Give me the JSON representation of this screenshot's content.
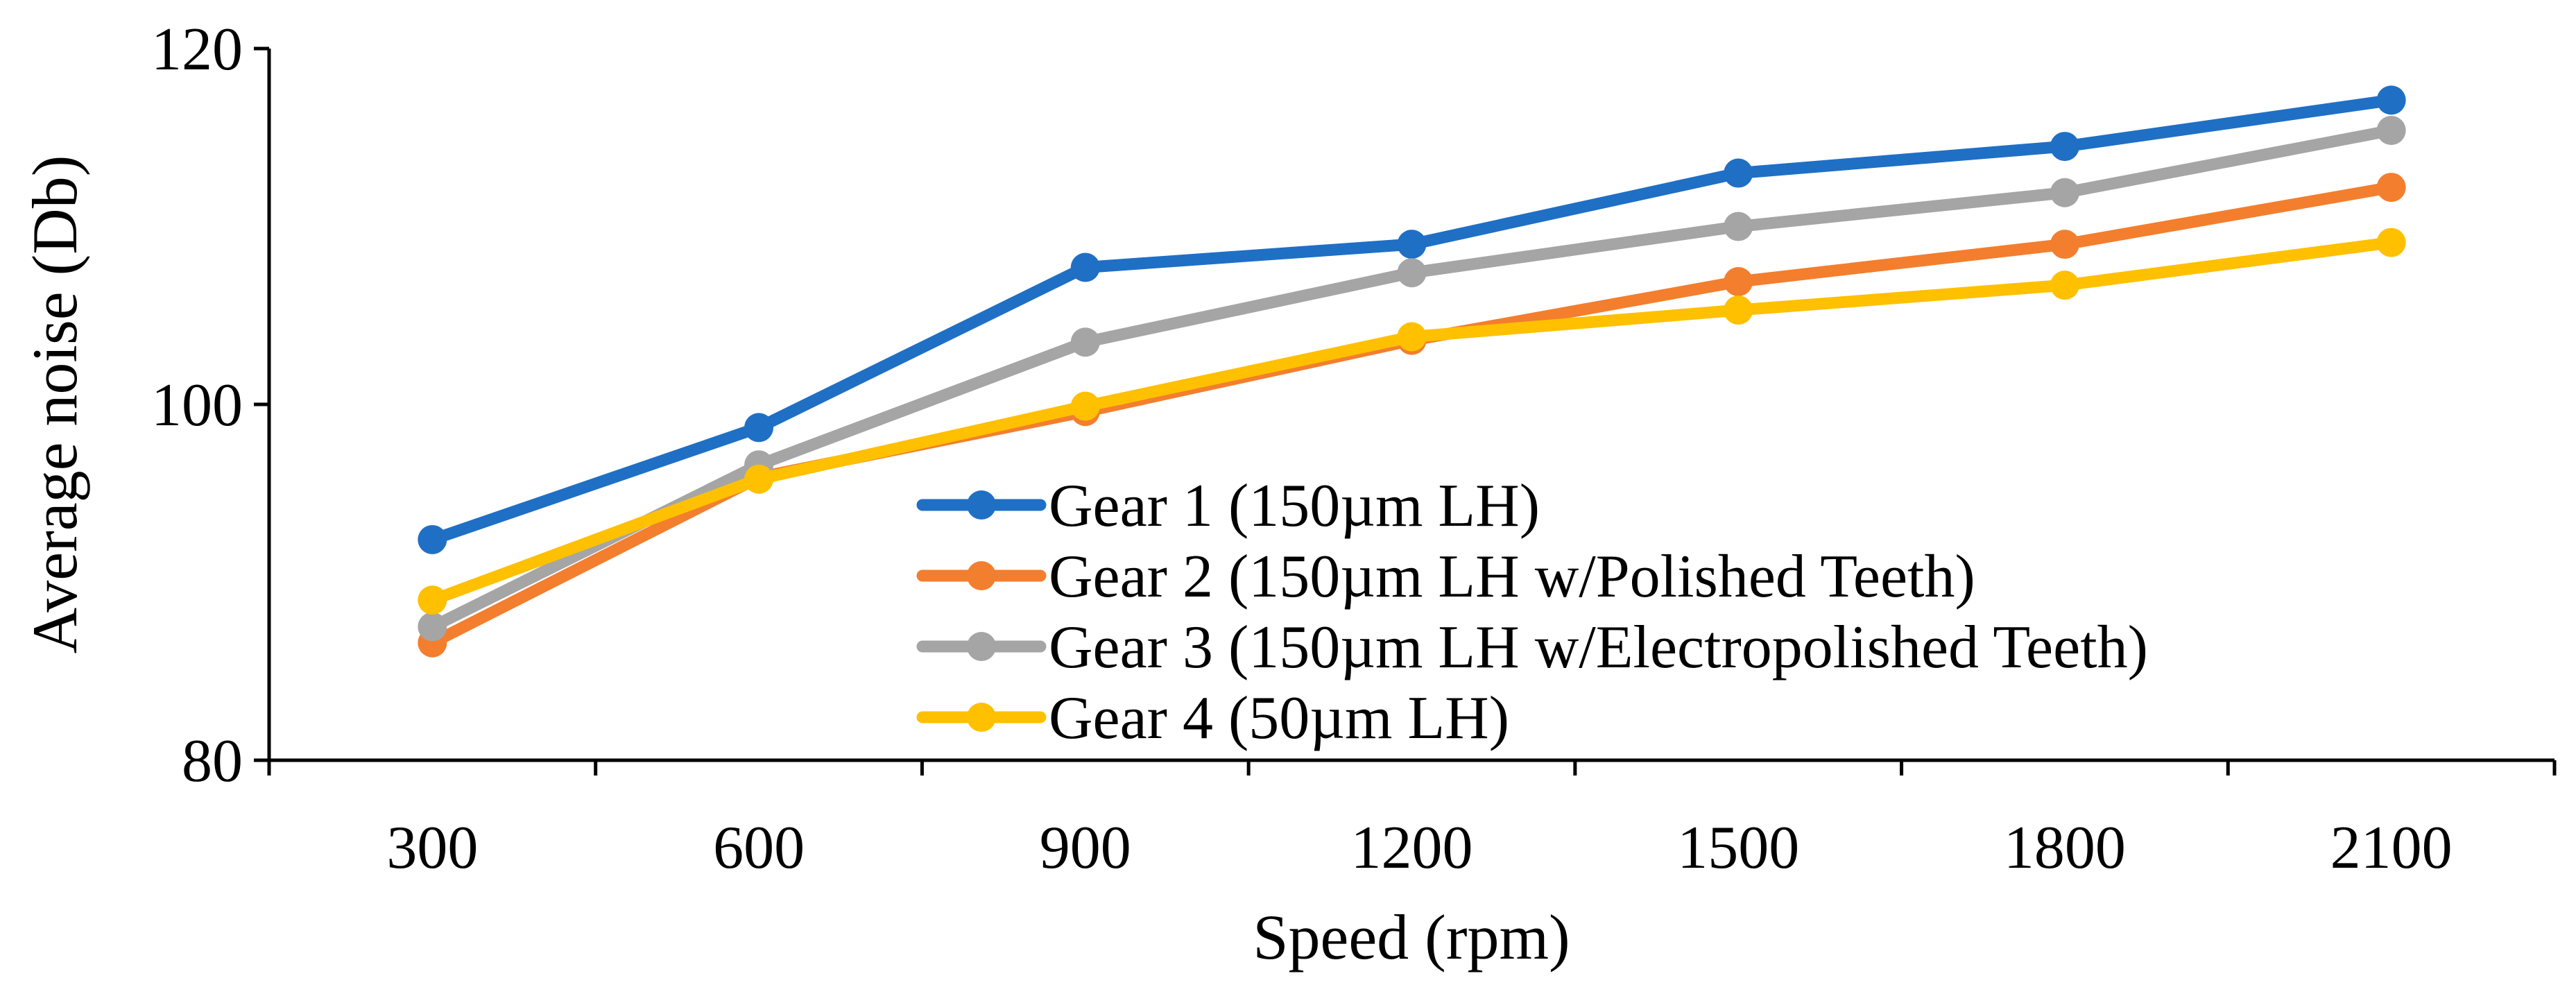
{
  "chart_data": {
    "type": "line",
    "title": "",
    "xlabel": "Speed (rpm)",
    "ylabel": "Average noise (Db)",
    "categories": [
      "300",
      "600",
      "900",
      "1200",
      "1500",
      "1800",
      "2100"
    ],
    "ylim": [
      80,
      120
    ],
    "yticks": [
      "80",
      "100",
      "120"
    ],
    "grid": false,
    "legend_position": "inside-bottom-center",
    "series": [
      {
        "name": "Gear 1 (150µm LH)",
        "color": "#1F6FC5",
        "values": [
          92.4,
          98.7,
          107.7,
          109.0,
          113.0,
          114.5,
          117.1
        ]
      },
      {
        "name": "Gear 2 (150µm LH w/Polished Teeth)",
        "color": "#F37E2E",
        "values": [
          86.6,
          95.9,
          99.6,
          103.6,
          106.9,
          109.0,
          112.2
        ]
      },
      {
        "name": "Gear 3 (150µm LH w/Electropolished Teeth)",
        "color": "#A5A5A5",
        "values": [
          87.5,
          96.6,
          103.5,
          107.4,
          110.0,
          111.9,
          115.4
        ]
      },
      {
        "name": "Gear 4 (50µm LH)",
        "color": "#FFC000",
        "values": [
          89.0,
          95.8,
          99.9,
          103.8,
          105.3,
          106.7,
          109.1
        ]
      }
    ]
  }
}
